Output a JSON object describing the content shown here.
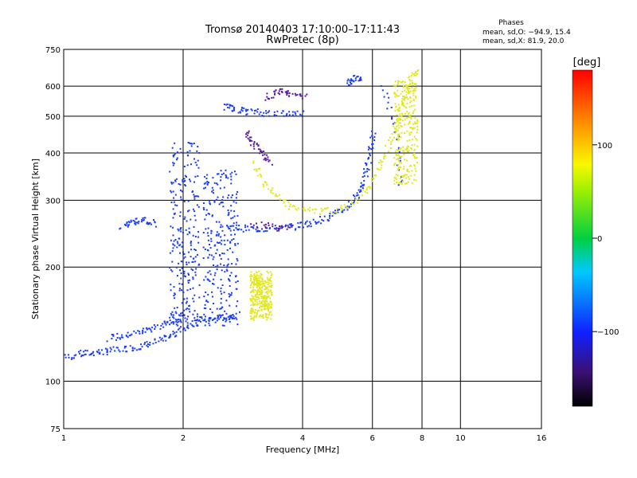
{
  "chart_data": {
    "type": "scatter",
    "title": "Tromsø 20140403 17:10:00–17:11:43",
    "subtitle": "RwPretec (8p)",
    "xlabel": "Frequency [MHz]",
    "ylabel": "Stationary phase Virtual Height [km]",
    "x_scale": "log",
    "y_scale": "log",
    "xlim": [
      1,
      16
    ],
    "ylim": [
      75,
      750
    ],
    "xticks": [
      1,
      2,
      4,
      6,
      8,
      10,
      16
    ],
    "yticks": [
      75,
      100,
      200,
      300,
      400,
      500,
      600,
      750
    ],
    "grid": true,
    "stats": {
      "title": "Phases",
      "line_o": "mean, sd,O: −94.9, 15.4",
      "line_x": "mean, sd,X:  81.9, 20.0"
    },
    "colorbar": {
      "label": "[deg]",
      "range": [
        -180,
        180
      ],
      "ticks": [
        100,
        0,
        -100
      ],
      "tick_labels": [
        "100",
        "0",
        "−100"
      ]
    },
    "series": [
      {
        "mode": "O",
        "phase_deg": -95,
        "color": "#1a3cf5",
        "traces": [
          [
            [
              1.0,
              115
            ],
            [
              1.1,
              118
            ],
            [
              1.2,
              119
            ],
            [
              1.3,
              120
            ],
            [
              1.45,
              122
            ],
            [
              1.6,
              124
            ],
            [
              1.75,
              128
            ],
            [
              1.9,
              133
            ],
            [
              2.05,
              140
            ],
            [
              2.2,
              145
            ],
            [
              2.4,
              146
            ],
            [
              2.6,
              148
            ],
            [
              2.75,
              150
            ]
          ],
          [
            [
              1.3,
              130
            ],
            [
              1.45,
              132
            ],
            [
              1.6,
              136
            ],
            [
              1.75,
              140
            ],
            [
              1.9,
              145
            ],
            [
              2.05,
              150
            ]
          ],
          [
            [
              2.55,
              255
            ],
            [
              2.8,
              253
            ],
            [
              3.1,
              252
            ],
            [
              3.5,
              253
            ],
            [
              3.9,
              257
            ],
            [
              4.3,
              263
            ],
            [
              4.7,
              272
            ],
            [
              5.1,
              284
            ],
            [
              5.4,
              300
            ],
            [
              5.65,
              325
            ],
            [
              5.8,
              360
            ],
            [
              5.95,
              410
            ],
            [
              6.05,
              455
            ]
          ],
          [
            [
              2.55,
              530
            ],
            [
              2.7,
              522
            ],
            [
              2.9,
              515
            ],
            [
              3.2,
              510
            ],
            [
              3.6,
              508
            ],
            [
              4.0,
              510
            ]
          ],
          [
            [
              5.2,
              610
            ],
            [
              5.4,
              630
            ],
            [
              5.6,
              625
            ]
          ],
          [
            [
              6.4,
              610
            ],
            [
              6.9,
              440
            ],
            [
              7.1,
              320
            ]
          ],
          [
            [
              1.4,
              255
            ],
            [
              1.5,
              262
            ],
            [
              1.6,
              268
            ],
            [
              1.7,
              258
            ]
          ]
        ],
        "bands": [
          {
            "x": [
              1.85,
              2.2
            ],
            "y": [
              140,
              430
            ]
          },
          {
            "x": [
              2.25,
              2.75
            ],
            "y": [
              140,
              360
            ]
          }
        ]
      },
      {
        "mode": "X",
        "phase_deg": 82,
        "color": "#e2e81e",
        "traces": [
          [
            [
              3.0,
              375
            ],
            [
              3.2,
              335
            ],
            [
              3.45,
              305
            ],
            [
              3.8,
              287
            ],
            [
              4.3,
              280
            ],
            [
              4.9,
              282
            ],
            [
              5.5,
              300
            ],
            [
              6.0,
              335
            ],
            [
              6.4,
              385
            ],
            [
              6.8,
              450
            ],
            [
              7.1,
              520
            ],
            [
              7.3,
              575
            ],
            [
              7.5,
              630
            ],
            [
              7.8,
              660
            ]
          ],
          [
            [
              3.05,
              190
            ],
            [
              3.1,
              180
            ],
            [
              3.15,
              170
            ],
            [
              3.2,
              162
            ],
            [
              3.25,
              155
            ]
          ]
        ],
        "bands": [
          {
            "x": [
              2.95,
              3.35
            ],
            "y": [
              145,
              195
            ]
          },
          {
            "x": [
              6.8,
              7.8
            ],
            "y": [
              330,
              620
            ]
          }
        ]
      },
      {
        "mode": "O",
        "phase_deg": -140,
        "color": "#5a1a9a",
        "traces": [
          [
            [
              2.9,
              450
            ],
            [
              3.0,
              425
            ],
            [
              3.15,
              400
            ],
            [
              3.35,
              375
            ]
          ],
          [
            [
              3.2,
              560
            ],
            [
              3.5,
              580
            ],
            [
              3.7,
              575
            ],
            [
              4.1,
              560
            ]
          ],
          [
            [
              3.0,
              260
            ],
            [
              3.4,
              255
            ],
            [
              3.8,
              256
            ]
          ]
        ],
        "bands": []
      }
    ]
  }
}
